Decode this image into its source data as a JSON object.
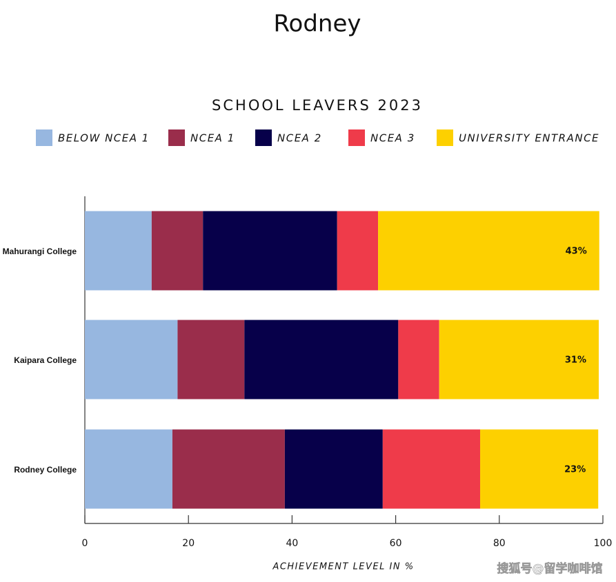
{
  "page_title": "Rodney",
  "watermark": "搜狐号@留学咖啡馆",
  "chart_data": {
    "type": "stacked_barh",
    "title": "SCHOOL LEAVERS 2023",
    "xlabel": "ACHIEVEMENT LEVEL IN %",
    "categories": [
      "Mahurangi College",
      "Kaipara College",
      "Rodney College"
    ],
    "series": [
      {
        "name": "BELOW NCEA 1",
        "color": "#97b7e0",
        "values": [
          12.9,
          17.9,
          16.9
        ]
      },
      {
        "name": "NCEA 1",
        "color": "#9a2d4b",
        "values": [
          9.9,
          12.9,
          21.7
        ]
      },
      {
        "name": "NCEA 2",
        "color": "#07004a",
        "values": [
          25.9,
          29.7,
          18.9
        ]
      },
      {
        "name": "NCEA 3",
        "color": "#ef3b4a",
        "values": [
          7.9,
          7.9,
          18.8
        ]
      },
      {
        "name": "UNIVERSITY ENTRANCE",
        "color": "#fdd000",
        "values": [
          42.7,
          30.8,
          22.8
        ],
        "value_labels": [
          "43%",
          "31%",
          "23%"
        ]
      }
    ],
    "xlim": [
      0,
      100
    ],
    "xticks": [
      0,
      20,
      40,
      60,
      80,
      100
    ],
    "legend": "top"
  }
}
